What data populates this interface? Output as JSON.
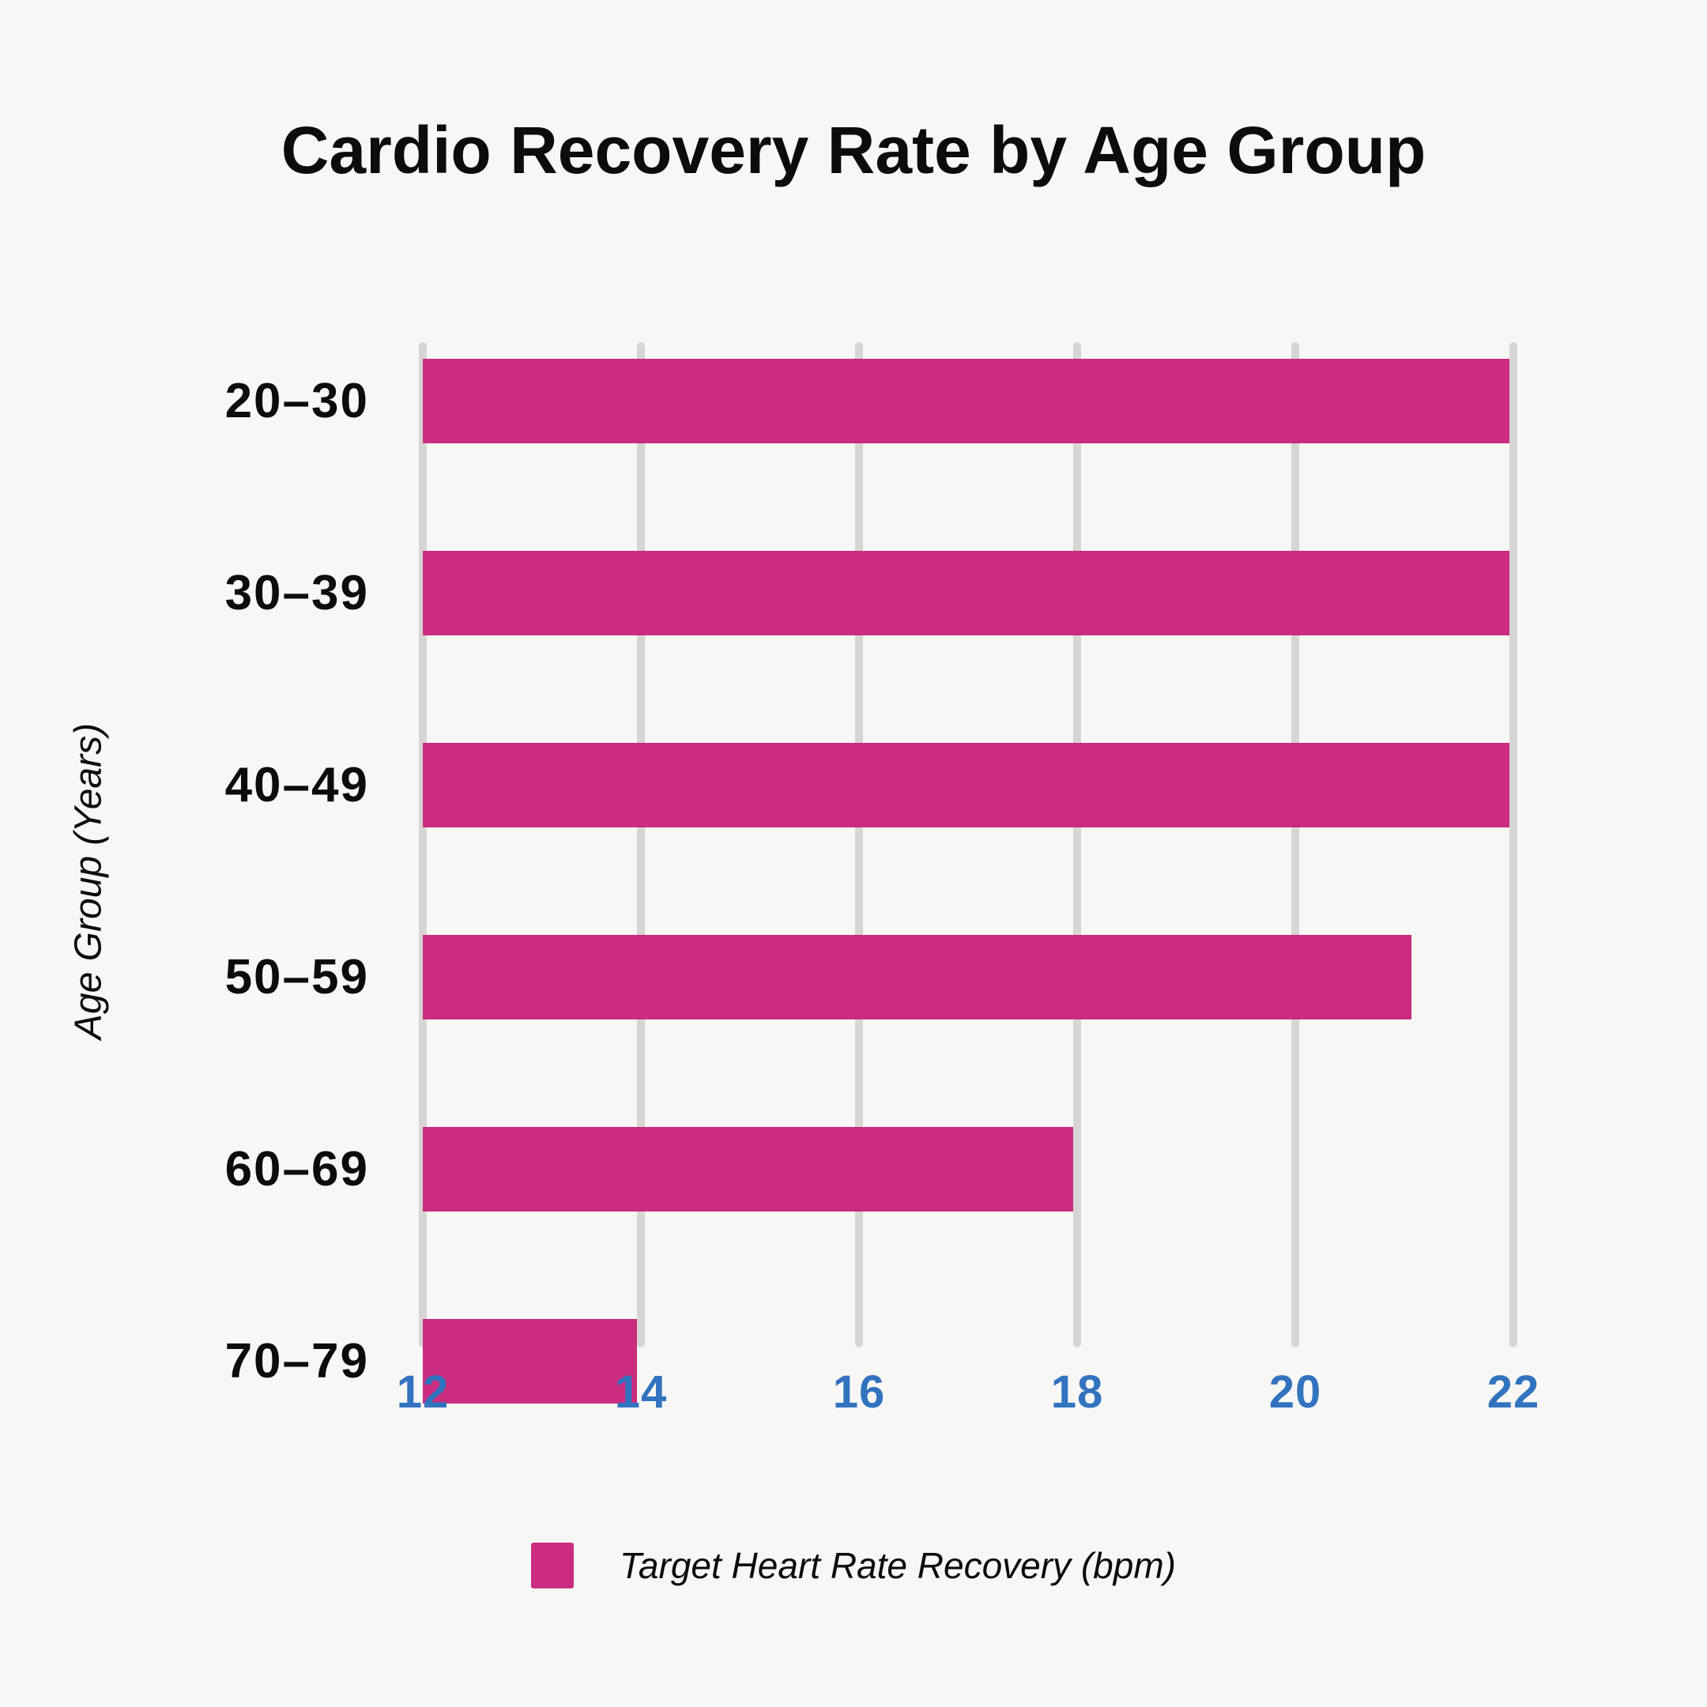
{
  "title": "Cardio Recovery Rate by Age Group",
  "y_axis_title": "Age Group (Years)",
  "legend": {
    "label": "Target Heart Rate Recovery (bpm)",
    "swatch_color": "#CA2C80"
  },
  "colors": {
    "bar": "#CA2C80",
    "tick_label": "#3273BF",
    "gridline": "#D7D5D3",
    "background": "#F7F7F5",
    "text": "#0C0C0C"
  },
  "chart_data": {
    "type": "bar",
    "orientation": "horizontal",
    "title": "Cardio Recovery Rate by Age Group",
    "xlabel": "",
    "ylabel": "Age Group (Years)",
    "categories": [
      "20–30",
      "30–39",
      "40–49",
      "50–59",
      "60–69",
      "70–79"
    ],
    "series": [
      {
        "name": "Target Heart Rate Recovery (bpm)",
        "values": [
          22,
          22,
          22,
          21.1,
          18,
          14
        ]
      }
    ],
    "xlim": [
      12,
      22
    ],
    "xticks": [
      12,
      14,
      16,
      18,
      20,
      22
    ],
    "grid": true,
    "legend_position": "bottom"
  }
}
